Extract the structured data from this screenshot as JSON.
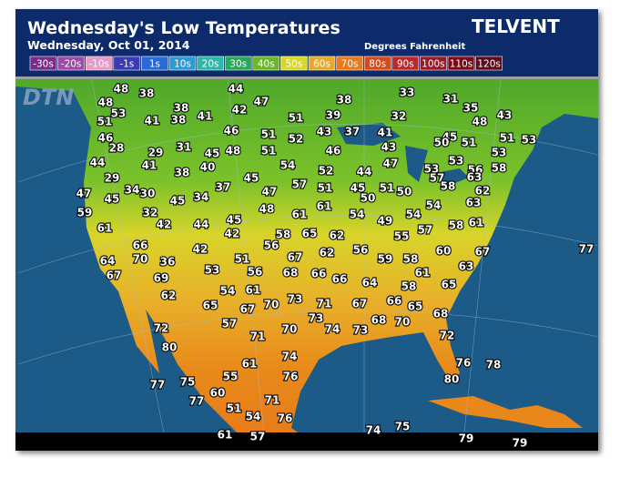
{
  "header": {
    "title": "Wednesday's Low Temperatures",
    "date": "Wednesday, Oct 01, 2014",
    "units": "Degrees Fahrenheit",
    "brand": "TELVENT",
    "watermark": "DTN"
  },
  "legend": [
    {
      "label": "-30s",
      "color": "#7a2b8c"
    },
    {
      "label": "-20s",
      "color": "#a04aa8"
    },
    {
      "label": "-10s",
      "color": "#e89ac8"
    },
    {
      "label": "-1s",
      "color": "#3a3ab8"
    },
    {
      "label": "1s",
      "color": "#2a6ad8"
    },
    {
      "label": "10s",
      "color": "#2a9ad8"
    },
    {
      "label": "20s",
      "color": "#2ab8a8"
    },
    {
      "label": "30s",
      "color": "#2aa85a"
    },
    {
      "label": "40s",
      "color": "#6ab82a"
    },
    {
      "label": "50s",
      "color": "#d8d82a"
    },
    {
      "label": "60s",
      "color": "#e8a82a"
    },
    {
      "label": "70s",
      "color": "#e87a1a"
    },
    {
      "label": "80s",
      "color": "#d84a1a"
    },
    {
      "label": "90s",
      "color": "#b82a2a"
    },
    {
      "label": "100s",
      "color": "#981a2a"
    },
    {
      "label": "110s",
      "color": "#7a0a1a"
    },
    {
      "label": "120s",
      "color": "#5a0a1a"
    }
  ],
  "stations": [
    48,
    38,
    44,
    33,
    48,
    47,
    38,
    31,
    35,
    53,
    38,
    42,
    51,
    39,
    32,
    43,
    48,
    51,
    41,
    38,
    41,
    46,
    46,
    51,
    52,
    43,
    37,
    41,
    45,
    51,
    51,
    53,
    50,
    28,
    29,
    31,
    45,
    48,
    51,
    46,
    43,
    53,
    44,
    41,
    38,
    40,
    54,
    52,
    44,
    47,
    53,
    53,
    56,
    58,
    29,
    45,
    57,
    45,
    51,
    50,
    57,
    58,
    63,
    47,
    34,
    30,
    37,
    47,
    51,
    62,
    45,
    45,
    34,
    50,
    54,
    63,
    59,
    32,
    48,
    61,
    61,
    54,
    54,
    61,
    42,
    44,
    45,
    42,
    58,
    65,
    62,
    49,
    58,
    61,
    66,
    56,
    55,
    57,
    64,
    70,
    36,
    42,
    51,
    67,
    62,
    56,
    60,
    67,
    77,
    69,
    53,
    56,
    68,
    66,
    66,
    59,
    58,
    61,
    63,
    67,
    62,
    54,
    61,
    64,
    58,
    65,
    65,
    67,
    70,
    73,
    71,
    67,
    66,
    65,
    68,
    72,
    57,
    70,
    73,
    74,
    73,
    68,
    70,
    80,
    71,
    72,
    74,
    76,
    78,
    55,
    61,
    76,
    80,
    77,
    75,
    60,
    77,
    71,
    51,
    54,
    76,
    74,
    75,
    61,
    57,
    79,
    79
  ]
}
